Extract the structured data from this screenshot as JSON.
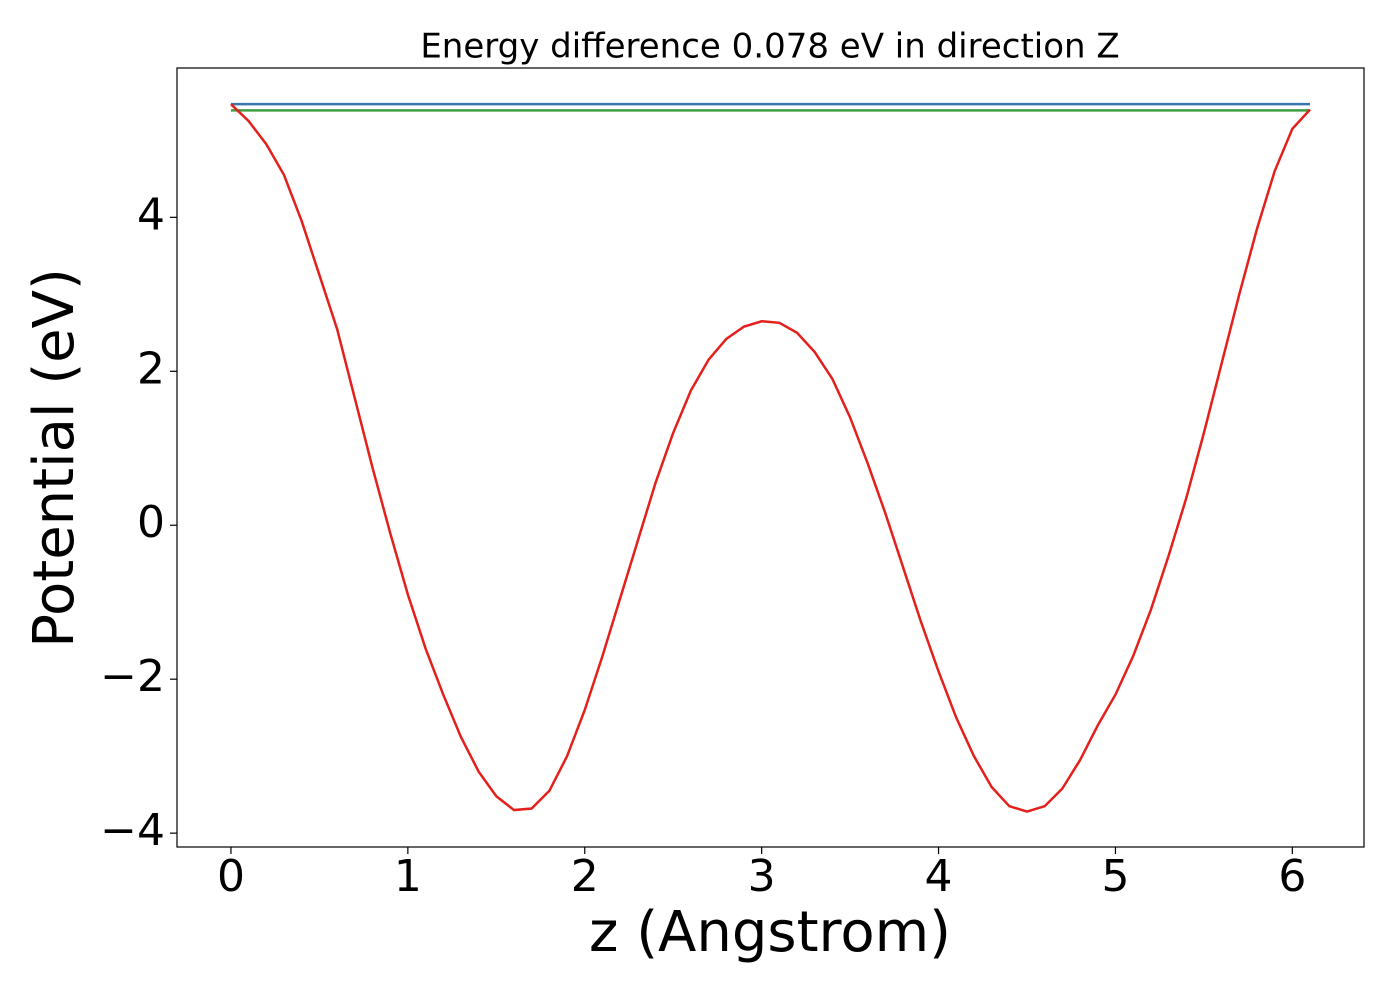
{
  "chart_data": {
    "type": "line",
    "title": "Energy difference 0.078 eV in direction Z",
    "x_label": "z (Angstrom)",
    "y_label": "Potential (eV)",
    "xlim": [
      -0.305,
      6.405
    ],
    "ylim": [
      -4.18,
      5.94
    ],
    "xticks": [
      0,
      1,
      2,
      3,
      4,
      5,
      6
    ],
    "yticks": [
      {
        "value": -4,
        "label": "−4"
      },
      {
        "value": -2,
        "label": "−2"
      },
      0,
      2,
      4
    ],
    "grid": false,
    "series": [
      {
        "color": "#3a76ae",
        "x": [
          0,
          6.1
        ],
        "values": [
          5.47,
          5.47
        ]
      },
      {
        "color": "#3f9e3f",
        "x": [
          0,
          6.1
        ],
        "values": [
          5.39,
          5.39
        ]
      },
      {
        "color": "#e3201c",
        "x": [
          0,
          0.1,
          0.2,
          0.3,
          0.4,
          0.5,
          0.6,
          0.7,
          0.8,
          0.9,
          1.0,
          1.1,
          1.2,
          1.3,
          1.4,
          1.5,
          1.6,
          1.7,
          1.8,
          1.9,
          2.0,
          2.1,
          2.2,
          2.3,
          2.4,
          2.5,
          2.6,
          2.7,
          2.8,
          2.9,
          3.0,
          3.1,
          3.2,
          3.3,
          3.4,
          3.5,
          3.6,
          3.7,
          3.8,
          3.9,
          4.0,
          4.1,
          4.2,
          4.3,
          4.4,
          4.5,
          4.6,
          4.7,
          4.8,
          4.9,
          5.0,
          5.1,
          5.2,
          5.3,
          5.4,
          5.5,
          5.6,
          5.7,
          5.8,
          5.9,
          6.0,
          6.1
        ],
        "values": [
          5.47,
          5.25,
          4.95,
          4.55,
          3.95,
          3.25,
          2.55,
          1.65,
          0.75,
          -0.1,
          -0.9,
          -1.6,
          -2.2,
          -2.75,
          -3.2,
          -3.52,
          -3.7,
          -3.68,
          -3.45,
          -3.0,
          -2.4,
          -1.7,
          -0.95,
          -0.2,
          0.55,
          1.2,
          1.75,
          2.15,
          2.42,
          2.58,
          2.65,
          2.63,
          2.5,
          2.25,
          1.9,
          1.4,
          0.8,
          0.15,
          -0.55,
          -1.25,
          -1.9,
          -2.5,
          -3.0,
          -3.4,
          -3.65,
          -3.72,
          -3.65,
          -3.42,
          -3.05,
          -2.6,
          -2.2,
          -1.7,
          -1.1,
          -0.4,
          0.35,
          1.2,
          2.1,
          3.0,
          3.85,
          4.6,
          5.15,
          5.4
        ]
      }
    ]
  }
}
